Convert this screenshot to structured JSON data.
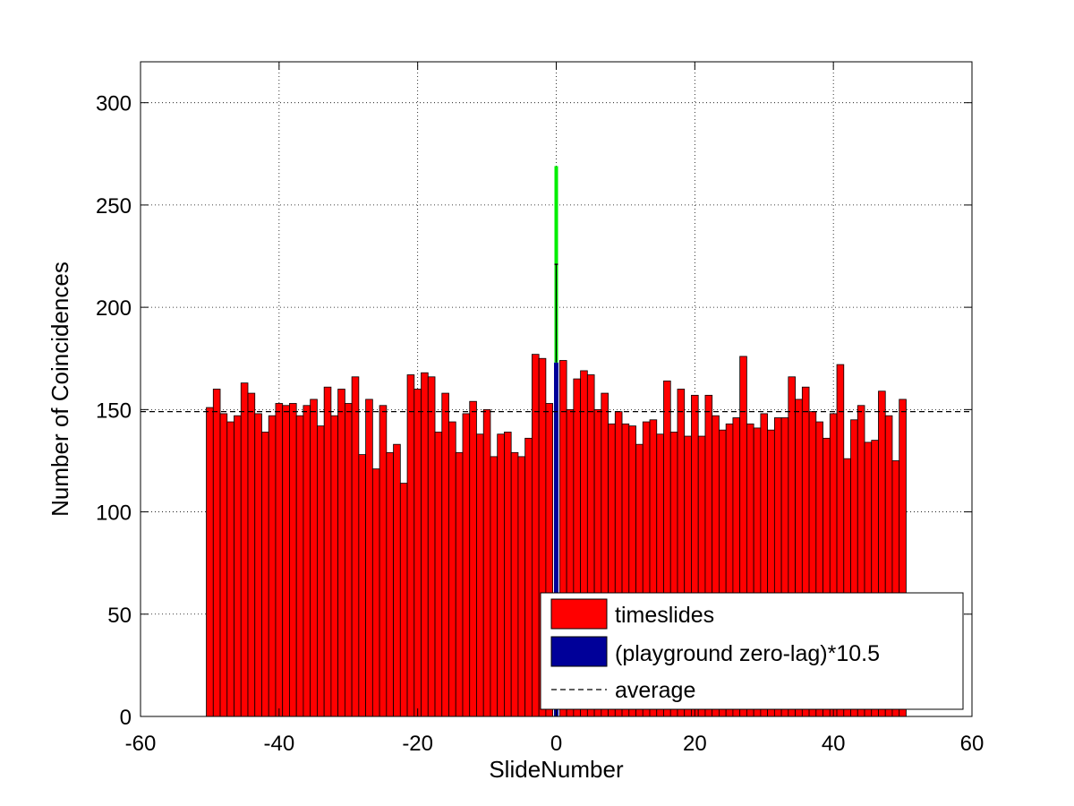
{
  "chart_data": {
    "type": "bar",
    "xlabel": "SlideNumber",
    "ylabel": "Number of Coincidences",
    "xlim": [
      -60,
      60
    ],
    "ylim": [
      0,
      320
    ],
    "xticks": [
      -60,
      -40,
      -20,
      0,
      20,
      40,
      60
    ],
    "yticks": [
      0,
      50,
      100,
      150,
      200,
      250,
      300
    ],
    "grid": true,
    "legend_position": "bottom-right",
    "series": [
      {
        "name": "timeslides",
        "color": "#ff0000",
        "x": [
          -50,
          -49,
          -48,
          -47,
          -46,
          -45,
          -44,
          -43,
          -42,
          -41,
          -40,
          -39,
          -38,
          -37,
          -36,
          -35,
          -34,
          -33,
          -32,
          -31,
          -30,
          -29,
          -28,
          -27,
          -26,
          -25,
          -24,
          -23,
          -22,
          -21,
          -20,
          -19,
          -18,
          -17,
          -16,
          -15,
          -14,
          -13,
          -12,
          -11,
          -10,
          -9,
          -8,
          -7,
          -6,
          -5,
          -4,
          -3,
          -2,
          -1,
          1,
          2,
          3,
          4,
          5,
          6,
          7,
          8,
          9,
          10,
          11,
          12,
          13,
          14,
          15,
          16,
          17,
          18,
          19,
          20,
          21,
          22,
          23,
          24,
          25,
          26,
          27,
          28,
          29,
          30,
          31,
          32,
          33,
          34,
          35,
          36,
          37,
          38,
          39,
          40,
          41,
          42,
          43,
          44,
          45,
          46,
          47,
          48,
          49,
          50
        ],
        "values": [
          151,
          160,
          148,
          144,
          147,
          163,
          158,
          148,
          139,
          147,
          153,
          152,
          153,
          147,
          152,
          155,
          142,
          161,
          147,
          160,
          153,
          166,
          128,
          155,
          121,
          152,
          129,
          133,
          114,
          167,
          160,
          168,
          166,
          139,
          158,
          144,
          129,
          148,
          154,
          138,
          150,
          127,
          138,
          139,
          129,
          127,
          136,
          177,
          175,
          153,
          174,
          150,
          165,
          169,
          167,
          150,
          158,
          143,
          149,
          143,
          142,
          133,
          144,
          145,
          138,
          164,
          139,
          160,
          137,
          157,
          137,
          157,
          147,
          140,
          143,
          146,
          176,
          143,
          141,
          148,
          140,
          146,
          146,
          166,
          155,
          161,
          149,
          144,
          136,
          148,
          172,
          126,
          145,
          152,
          134,
          135,
          159,
          147,
          125,
          155
        ]
      },
      {
        "name": "(playground zero-lag)*10.5",
        "color": "#000099",
        "x": [
          0
        ],
        "values": [
          173
        ]
      },
      {
        "name": "average",
        "color": "#000000",
        "style": "dashed",
        "value": 149
      }
    ],
    "zero_lag_error_bar": {
      "x": 0,
      "center": 221,
      "low": 173,
      "high": 269,
      "color": "#00ee00"
    }
  }
}
